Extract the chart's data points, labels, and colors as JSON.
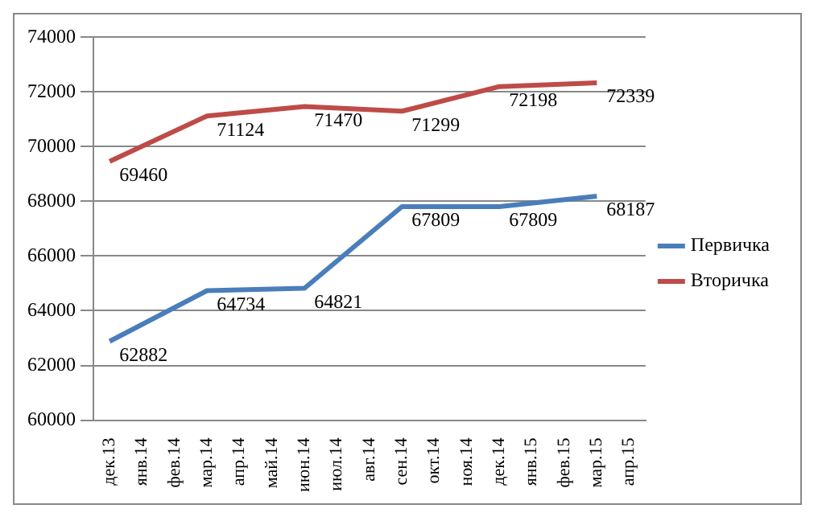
{
  "chart_data": {
    "type": "line",
    "categories": [
      "дек.13",
      "янв.14",
      "фев.14",
      "мар.14",
      "апр.14",
      "май.14",
      "июн.14",
      "июл.14",
      "авг.14",
      "сен.14",
      "окт.14",
      "ноя.14",
      "дек.14",
      "янв.15",
      "фев.15",
      "мар.15",
      "апр.15"
    ],
    "series": [
      {
        "name": "Первичка",
        "color": "#4a7ebb",
        "values": [
          62882,
          null,
          null,
          64734,
          null,
          null,
          64821,
          null,
          null,
          67809,
          null,
          null,
          67809,
          null,
          null,
          68187,
          null
        ]
      },
      {
        "name": "Вторичка",
        "color": "#be4b48",
        "values": [
          69460,
          null,
          null,
          71124,
          null,
          null,
          71470,
          null,
          null,
          71299,
          null,
          null,
          72198,
          null,
          null,
          72339,
          null
        ]
      }
    ],
    "ylim": [
      60000,
      74000
    ],
    "yticks": [
      60000,
      62000,
      64000,
      66000,
      68000,
      70000,
      72000,
      74000
    ],
    "grid": "y",
    "legend": "right",
    "marker": "none",
    "data_labels": true
  }
}
